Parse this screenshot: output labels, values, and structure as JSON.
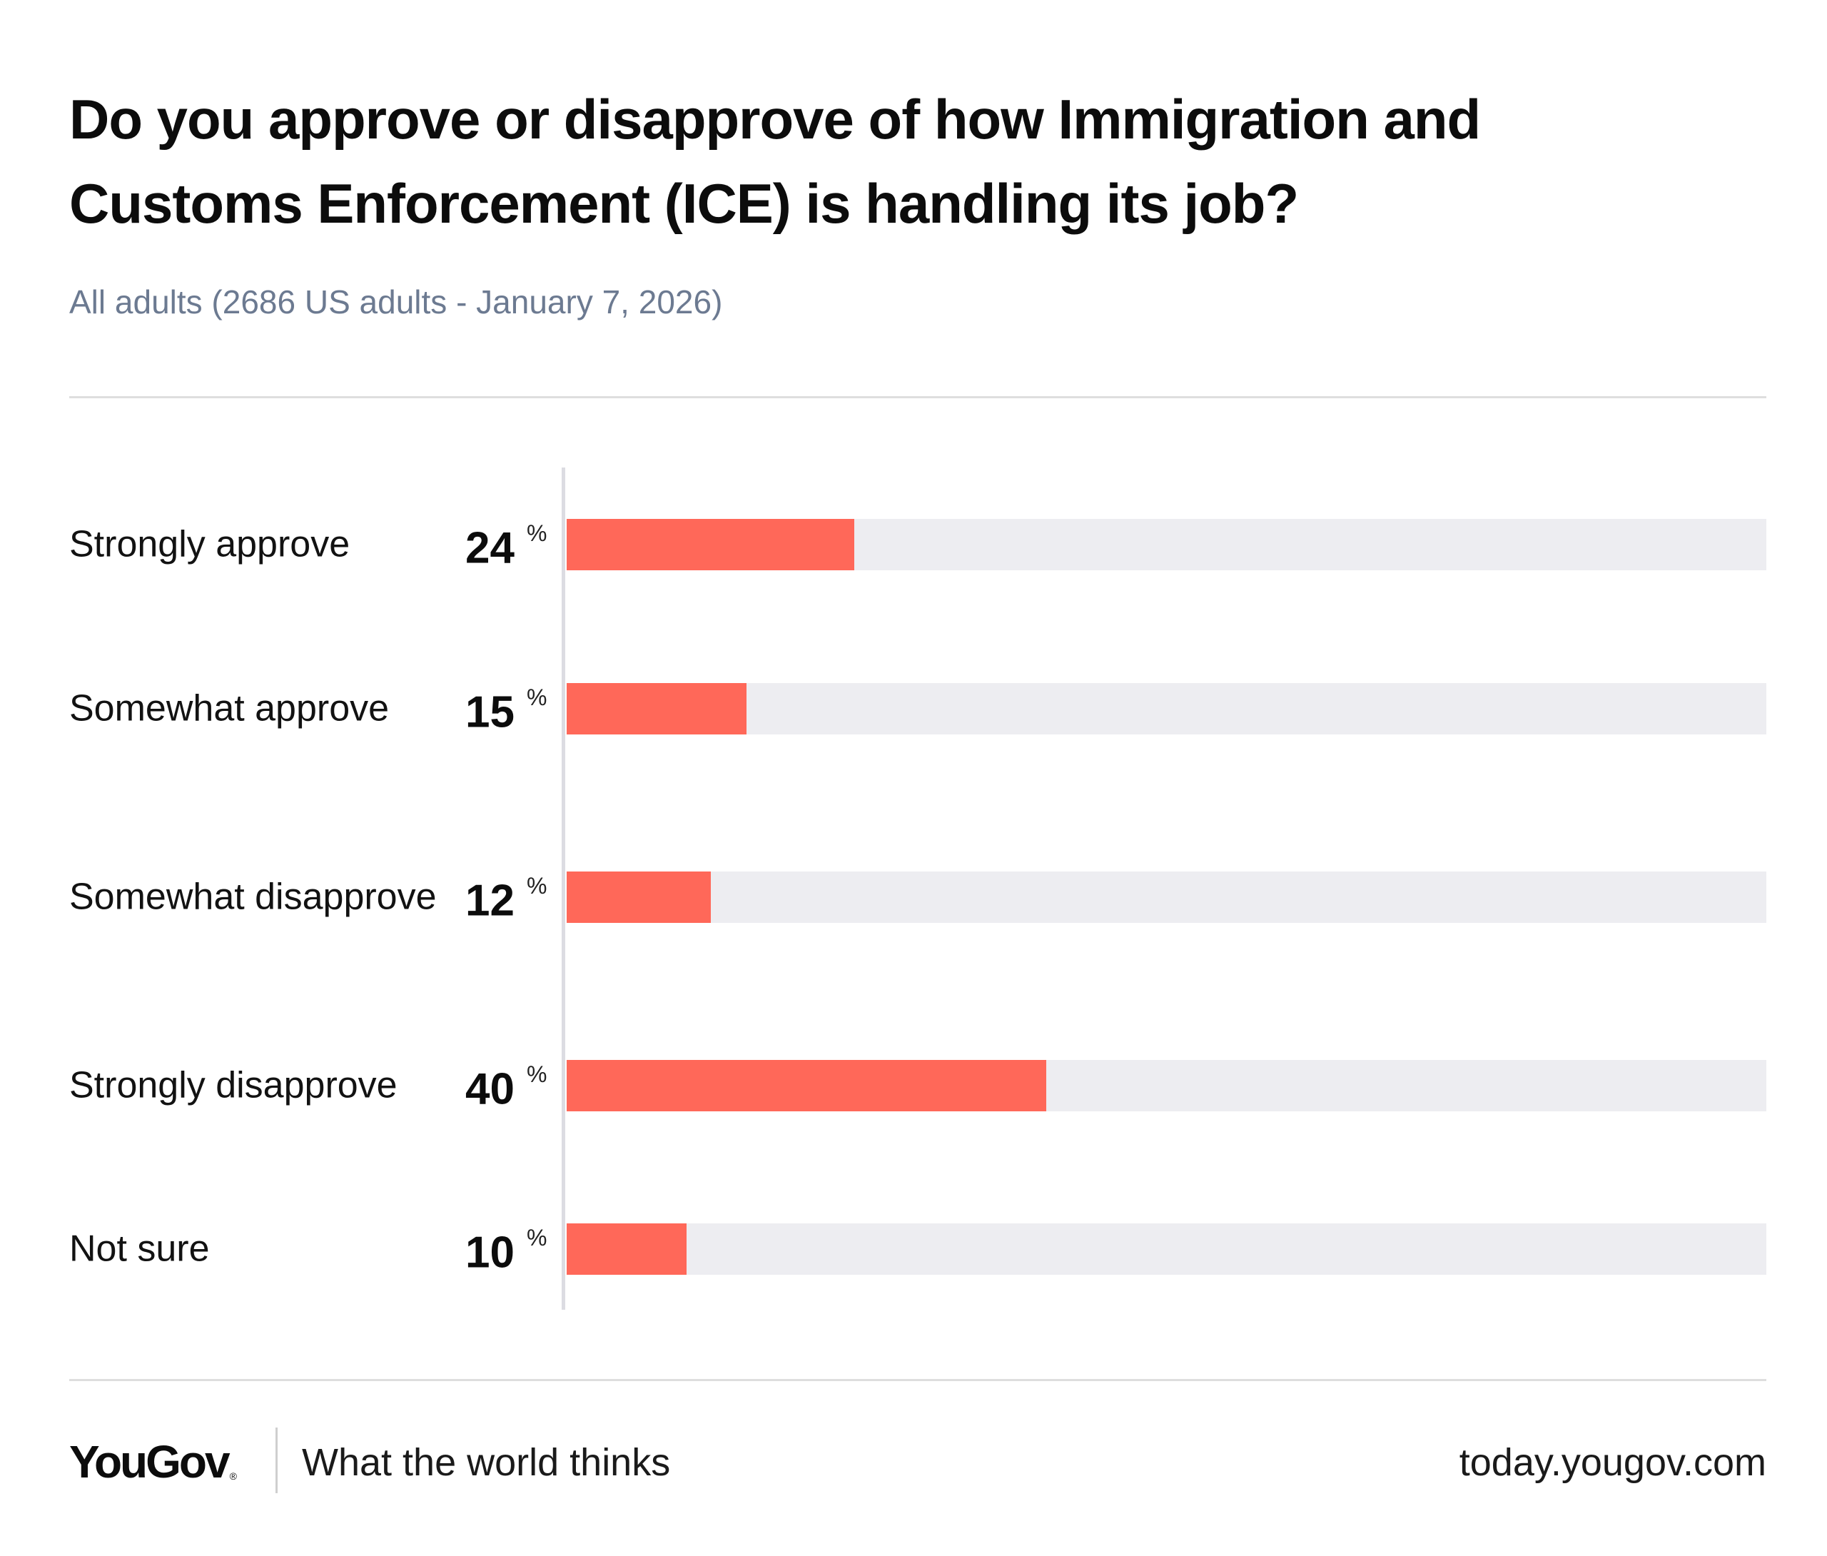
{
  "header": {
    "title": "Do you approve or disapprove of how Immigration and Customs Enforcement (ICE) is handling its job?",
    "subtitle": "All adults (2686 US adults - January 7, 2026)"
  },
  "chart_data": {
    "type": "bar",
    "orientation": "horizontal",
    "categories": [
      "Strongly approve",
      "Somewhat approve",
      "Somewhat disapprove",
      "Strongly disapprove",
      "Not sure"
    ],
    "values": [
      24,
      15,
      12,
      40,
      10
    ],
    "unit": "%",
    "xlim": [
      0,
      100
    ],
    "grid": false,
    "legend": "none",
    "colors": {
      "bar": "#ff6859",
      "track": "#ededf1"
    }
  },
  "footer": {
    "brand": "YouGov",
    "brand_mark": "®",
    "tagline": "What the world thinks",
    "url": "today.yougov.com"
  }
}
